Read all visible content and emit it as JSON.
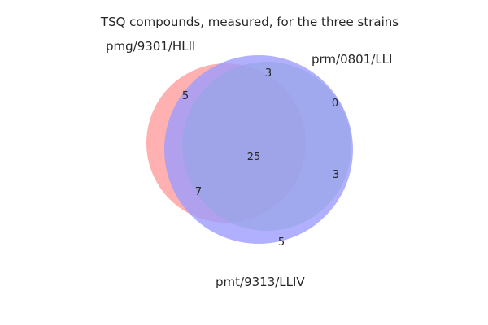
{
  "title": "TSQ compounds, measured, for the three strains",
  "sets": [
    {
      "name": "pmg/9301/HLII",
      "color": "#ff7f7f"
    },
    {
      "name": "prm/0801/LLI",
      "color": "#7fbf7f"
    },
    {
      "name": "pmt/9313/LLIV",
      "color": "#7f7fff"
    }
  ],
  "regions": {
    "pmg_only": "5",
    "pmg_prm": "3",
    "prm_only": "0",
    "all_three": "25",
    "prm_pmt": "3",
    "pmg_pmt": "7",
    "pmt_only": "5"
  }
}
